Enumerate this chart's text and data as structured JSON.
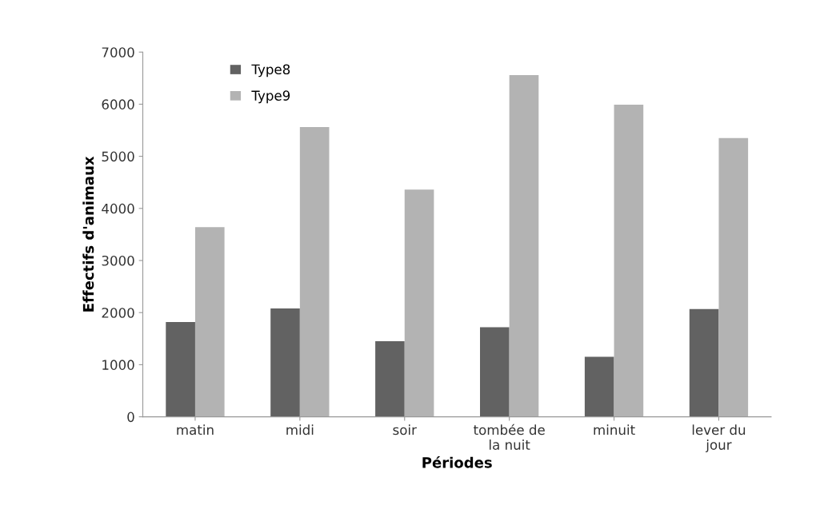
{
  "chart_data": {
    "type": "bar",
    "xlabel": "Périodes",
    "ylabel": "Effectifs d'animaux",
    "categories": [
      "matin",
      "midi",
      "soir",
      "tombée de\nla nuit",
      "minuit",
      "lever du\njour"
    ],
    "series": [
      {
        "name": "Type8",
        "color": "#626262",
        "values": [
          1820,
          2080,
          1450,
          1720,
          1150,
          2070
        ]
      },
      {
        "name": "Type9",
        "color": "#b3b3b3",
        "values": [
          3640,
          5560,
          4360,
          6560,
          5990,
          5350
        ]
      }
    ],
    "ylim": [
      0,
      7000
    ],
    "yticks": [
      0,
      1000,
      2000,
      3000,
      4000,
      5000,
      6000,
      7000
    ],
    "grid": false,
    "legend": "top left"
  }
}
